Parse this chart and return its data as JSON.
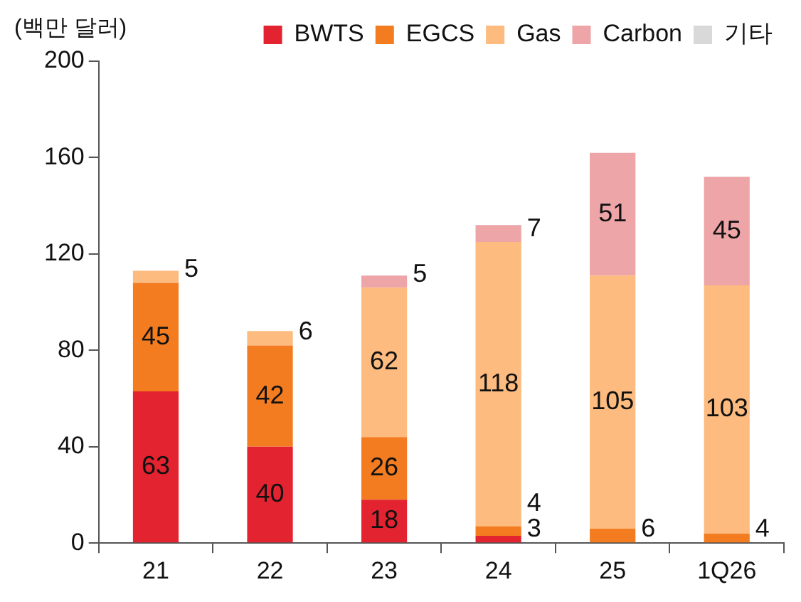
{
  "chart_data": {
    "type": "bar",
    "ylabel": "(백만 달러)",
    "categories": [
      "21",
      "22",
      "23",
      "24",
      "25",
      "1Q26"
    ],
    "stacked": true,
    "ylim": [
      0,
      200
    ],
    "yticks": [
      0,
      40,
      80,
      120,
      160,
      200
    ],
    "grid": false,
    "legend": "top",
    "data_labels": true,
    "series": [
      {
        "name": "BWTS",
        "color": "#e3232f",
        "values": [
          63,
          40,
          18,
          3,
          null,
          null
        ]
      },
      {
        "name": "EGCS",
        "color": "#f47c20",
        "values": [
          45,
          42,
          26,
          4,
          6,
          4
        ]
      },
      {
        "name": "Gas",
        "color": "#fdbb7f",
        "values": [
          5,
          6,
          62,
          118,
          105,
          103
        ]
      },
      {
        "name": "Carbon",
        "color": "#eda5a7",
        "values": [
          null,
          null,
          5,
          7,
          51,
          45
        ]
      },
      {
        "name": "기타",
        "color": "#d9d9d9",
        "values": [
          null,
          null,
          null,
          null,
          null,
          null
        ]
      }
    ]
  }
}
